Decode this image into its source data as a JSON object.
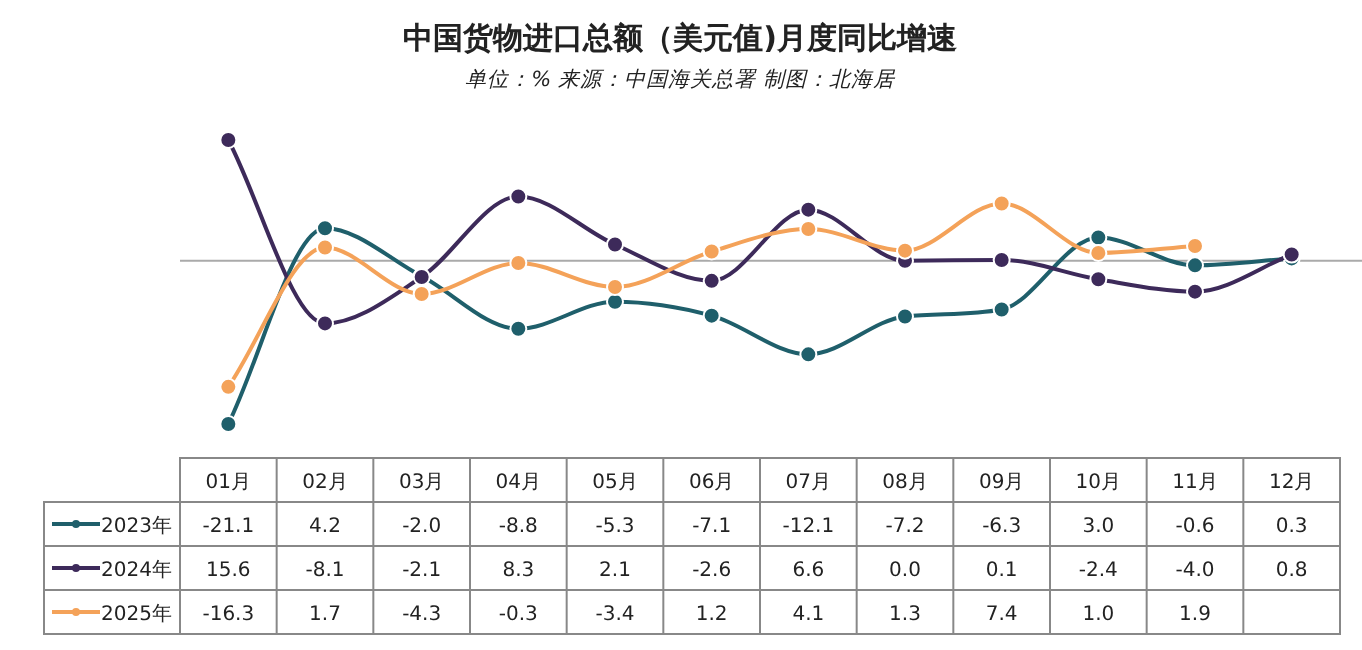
{
  "chart_data": {
    "type": "line",
    "title": "中国货物进口总额（美元值)月度同比增速",
    "subtitle": "单位：% 来源：中国海关总署 制图：北海居",
    "categories": [
      "01月",
      "02月",
      "03月",
      "04月",
      "05月",
      "06月",
      "07月",
      "08月",
      "09月",
      "10月",
      "11月",
      "12月"
    ],
    "series": [
      {
        "name": "2023年",
        "color": "#1f5f6b",
        "values": [
          -21.1,
          4.2,
          -2.0,
          -8.8,
          -5.3,
          -7.1,
          -12.1,
          -7.2,
          -6.3,
          3.0,
          -0.6,
          0.3
        ],
        "value_labels": [
          "-21.1",
          "4.2",
          "-2.0",
          "-8.8",
          "-5.3",
          "-7.1",
          "-12.1",
          "-7.2",
          "-6.3",
          "3.0",
          "-0.6",
          "0.3"
        ]
      },
      {
        "name": "2024年",
        "color": "#3d2a5a",
        "values": [
          15.6,
          -8.1,
          -2.1,
          8.3,
          2.1,
          -2.6,
          6.6,
          0.0,
          0.1,
          -2.4,
          -4.0,
          0.8
        ],
        "value_labels": [
          "15.6",
          "-8.1",
          "-2.1",
          "8.3",
          "2.1",
          "-2.6",
          "6.6",
          "0.0",
          "0.1",
          "-2.4",
          "-4.0",
          "0.8"
        ]
      },
      {
        "name": "2025年",
        "color": "#f4a259",
        "values": [
          -16.3,
          1.7,
          -4.3,
          -0.3,
          -3.4,
          1.2,
          4.1,
          1.3,
          7.4,
          1.0,
          1.9,
          null
        ],
        "value_labels": [
          "-16.3",
          "1.7",
          "-4.3",
          "-0.3",
          "-3.4",
          "1.2",
          "4.1",
          "1.3",
          "7.4",
          "1.0",
          "1.9",
          null
        ]
      }
    ],
    "marker": "circle",
    "legend": "bottom left"
  }
}
